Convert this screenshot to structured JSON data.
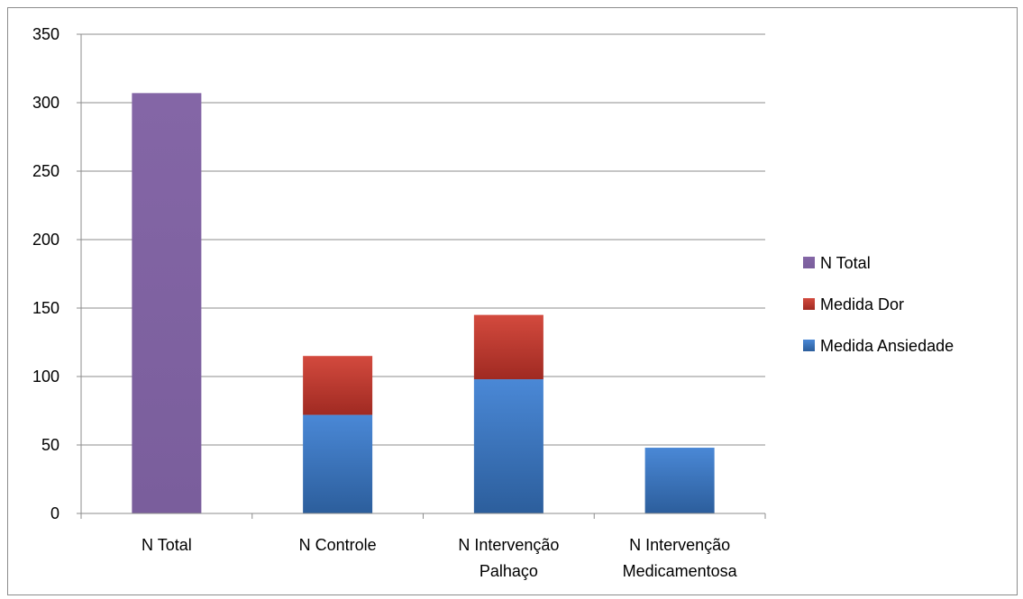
{
  "chart_data": {
    "type": "bar",
    "stacked": true,
    "categories": [
      [
        "N Total"
      ],
      [
        "N Controle"
      ],
      [
        "N Intervenção",
        "Palhaço"
      ],
      [
        "N Intervenção",
        "Medicamentosa"
      ]
    ],
    "series": [
      {
        "name": "Medida Ansiedade",
        "values": [
          0,
          72,
          98,
          48
        ],
        "color": "#3f7ac4"
      },
      {
        "name": "Medida Dor",
        "values": [
          0,
          43,
          47,
          0
        ],
        "color": "#c0392f"
      },
      {
        "name": "N Total",
        "values": [
          307,
          0,
          0,
          0
        ],
        "color": "#8064a2"
      }
    ],
    "legend_order": [
      "N Total",
      "Medida Dor",
      "Medida Ansiedade"
    ],
    "legend_position": "right",
    "title": "",
    "xlabel": "",
    "ylabel": "",
    "ylim": [
      0,
      350
    ],
    "yticks": [
      0,
      50,
      100,
      150,
      200,
      250,
      300,
      350
    ],
    "grid": true
  }
}
